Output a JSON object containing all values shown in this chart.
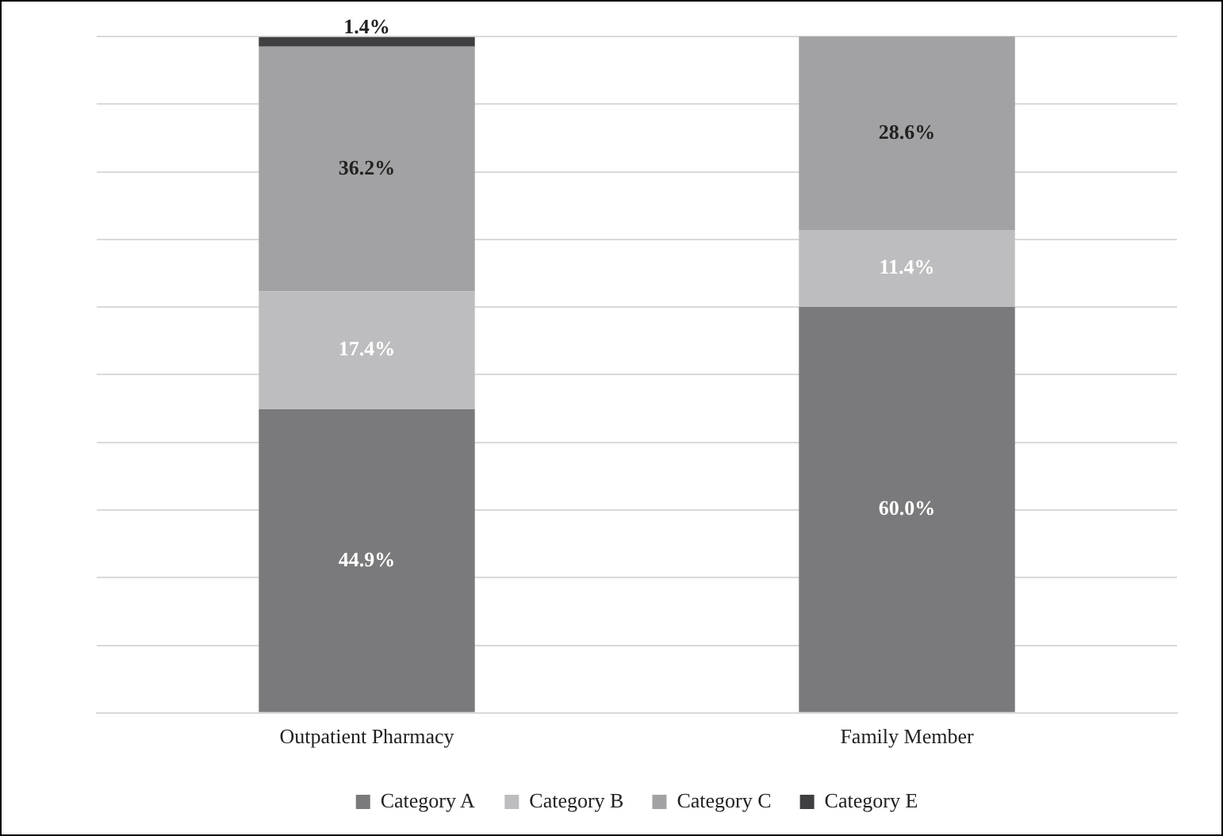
{
  "chart_data": {
    "type": "bar",
    "stacked": true,
    "categories": [
      "Outpatient Pharmacy",
      "Family Member"
    ],
    "series": [
      {
        "name": "Category A",
        "color": "#7a7a7c",
        "values": [
          44.9,
          60.0
        ],
        "value_labels": [
          "44.9%",
          "60.0%"
        ]
      },
      {
        "name": "Category B",
        "color": "#bdbdbf",
        "values": [
          17.4,
          11.4
        ],
        "value_labels": [
          "17.4%",
          "11.4%"
        ]
      },
      {
        "name": "Category C",
        "color": "#a2a2a4",
        "values": [
          36.2,
          28.6
        ],
        "value_labels": [
          "36.2%",
          "28.6%"
        ]
      },
      {
        "name": "Category E",
        "color": "#3f3f41",
        "values": [
          1.4,
          null
        ],
        "value_labels": [
          "1.4%",
          null
        ]
      }
    ],
    "grid": "y",
    "legend": "bottom",
    "tick_labels": "x"
  }
}
